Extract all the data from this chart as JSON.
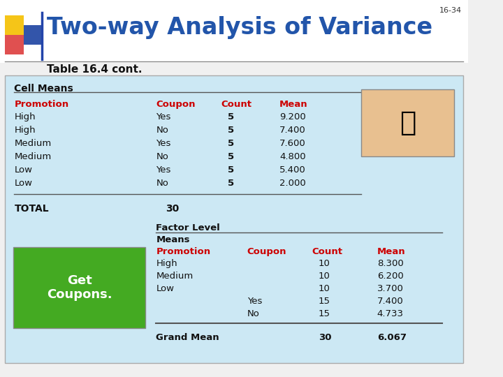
{
  "slide_num": "16-34",
  "title": "Two-way Analysis of Variance",
  "subtitle": "Table 16.4 cont.",
  "bg_color": "#cce0f0",
  "title_color": "#2255aa",
  "header_color": "#cc0000",
  "body_color": "#000000",
  "cell_means_header": "Cell Means",
  "table1_headers": [
    "Promotion",
    "Coupon",
    "Count",
    "Mean"
  ],
  "table1_rows": [
    [
      "High",
      "Yes",
      "5",
      "9.200"
    ],
    [
      "High",
      "No",
      "5",
      "7.400"
    ],
    [
      "Medium",
      "Yes",
      "5",
      "7.600"
    ],
    [
      "Medium",
      "No",
      "5",
      "4.800"
    ],
    [
      "Low",
      "Yes",
      "5",
      "5.400"
    ],
    [
      "Low",
      "No",
      "5",
      "2.000"
    ]
  ],
  "total_label": "TOTAL",
  "total_value": "30",
  "factor_level_label": "Factor Level",
  "means_label": "Means",
  "table2_headers": [
    "Promotion",
    "Coupon",
    "Count",
    "Mean"
  ],
  "table2_rows": [
    [
      "High",
      "",
      "10",
      "8.300"
    ],
    [
      "Medium",
      "",
      "10",
      "6.200"
    ],
    [
      "Low",
      "",
      "10",
      "3.700"
    ],
    [
      "",
      "Yes",
      "15",
      "7.400"
    ],
    [
      "",
      "No",
      "15",
      "4.733"
    ]
  ],
  "grand_mean_label": "Grand Mean",
  "grand_mean_count": "30",
  "grand_mean_value": "6.067"
}
